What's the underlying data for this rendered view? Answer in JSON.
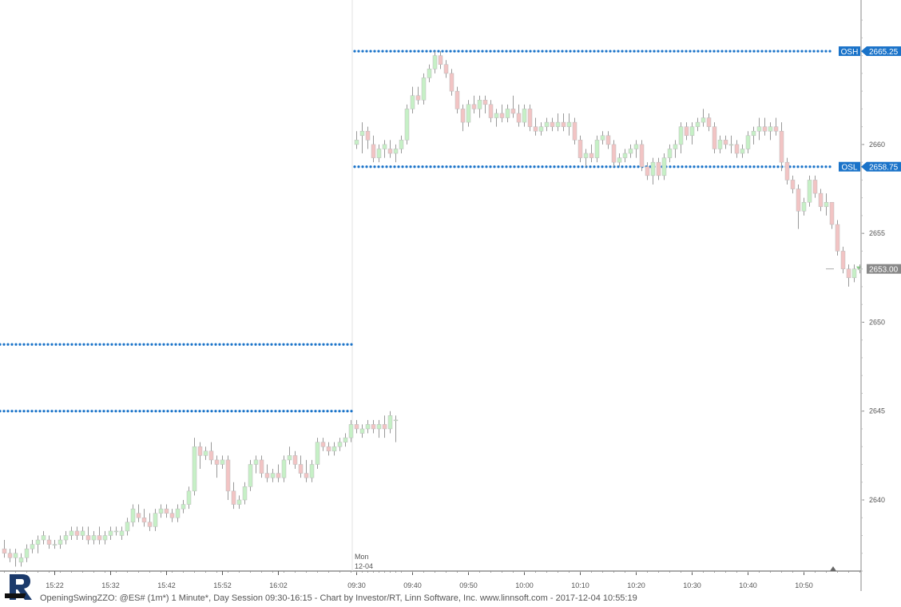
{
  "status_bar": {
    "text": "OpeningSwingZZO: @ES# (1m*) 1 Minute*, Day Session 09:30-16:15 - Chart by Investor/RT, Linn Software, Inc. www.linnsoft.com - 2017-12-04 10:55:19"
  },
  "colors": {
    "up": "#c6f0c6",
    "down": "#f2c4c4",
    "wick": "#999999",
    "level": "#1a73c9",
    "label_bg": "#1a73c9",
    "last_price_bg": "#888888"
  },
  "icons": {
    "logo": "linn-r-logo",
    "marker": "triangle-up-icon"
  },
  "chart_data": {
    "type": "candlestick",
    "title": "",
    "ylim": [
      2636,
      2667.5
    ],
    "y_ticks": [
      2640,
      2645,
      2650,
      2655,
      2660
    ],
    "x_ticks": [
      "15:22",
      "15:32",
      "15:42",
      "15:52",
      "16:02",
      "09:30",
      "09:40",
      "09:50",
      "10:00",
      "10:10",
      "10:20",
      "10:30",
      "10:40",
      "10:50"
    ],
    "session_break": {
      "label_day": "Mon",
      "label_date": "12-04"
    },
    "price_levels": [
      {
        "label": "OSH",
        "value": 2665.25,
        "value_text": "2665.25",
        "segment": "today"
      },
      {
        "label": "OSL",
        "value": 2658.75,
        "value_text": "2658.75",
        "segment": "today"
      },
      {
        "label": "",
        "value": 2648.75,
        "value_text": "",
        "segment": "prior"
      },
      {
        "label": "",
        "value": 2645.0,
        "value_text": "",
        "segment": "prior"
      }
    ],
    "last_price": {
      "value": 2653.0,
      "text": "2653.00"
    },
    "series": [
      {
        "session": "prior",
        "start_time": "15:13",
        "bars": [
          [
            2637.25,
            2637.75,
            2636.75,
            2637.0
          ],
          [
            2637.0,
            2637.25,
            2636.5,
            2636.75
          ],
          [
            2636.75,
            2637.25,
            2636.25,
            2637.0
          ],
          [
            2636.5,
            2637.0,
            2636.25,
            2636.75
          ],
          [
            2636.75,
            2637.5,
            2636.5,
            2637.25
          ],
          [
            2637.25,
            2637.75,
            2637.0,
            2637.5
          ],
          [
            2637.5,
            2638.0,
            2637.0,
            2637.75
          ],
          [
            2637.75,
            2638.25,
            2637.5,
            2638.0
          ],
          [
            2637.75,
            2638.0,
            2637.25,
            2637.5
          ],
          [
            2637.5,
            2637.75,
            2637.25,
            2637.5
          ],
          [
            2637.5,
            2638.0,
            2637.25,
            2637.75
          ],
          [
            2637.75,
            2638.25,
            2637.5,
            2638.0
          ],
          [
            2638.0,
            2638.5,
            2637.75,
            2638.25
          ],
          [
            2638.25,
            2638.5,
            2637.75,
            2638.0
          ],
          [
            2638.0,
            2638.5,
            2637.75,
            2638.25
          ],
          [
            2638.0,
            2638.5,
            2637.5,
            2637.75
          ],
          [
            2637.75,
            2638.25,
            2637.5,
            2638.0
          ],
          [
            2638.0,
            2638.5,
            2637.5,
            2637.75
          ],
          [
            2637.75,
            2638.25,
            2637.5,
            2638.0
          ],
          [
            2638.0,
            2638.5,
            2637.75,
            2638.25
          ],
          [
            2638.25,
            2638.5,
            2638.0,
            2638.25
          ],
          [
            2638.0,
            2638.5,
            2637.75,
            2638.25
          ],
          [
            2638.25,
            2639.0,
            2638.0,
            2638.75
          ],
          [
            2638.75,
            2639.75,
            2638.5,
            2639.5
          ],
          [
            2639.25,
            2639.75,
            2638.75,
            2639.0
          ],
          [
            2639.0,
            2639.5,
            2638.5,
            2638.75
          ],
          [
            2638.75,
            2639.25,
            2638.25,
            2638.5
          ],
          [
            2638.5,
            2639.5,
            2638.25,
            2639.25
          ],
          [
            2639.25,
            2639.75,
            2639.0,
            2639.5
          ],
          [
            2639.5,
            2639.75,
            2639.0,
            2639.25
          ],
          [
            2639.25,
            2639.5,
            2638.75,
            2639.0
          ],
          [
            2639.0,
            2639.75,
            2638.75,
            2639.5
          ],
          [
            2639.5,
            2640.0,
            2639.25,
            2639.75
          ],
          [
            2639.75,
            2640.75,
            2639.5,
            2640.5
          ],
          [
            2640.5,
            2643.5,
            2640.25,
            2643.0
          ],
          [
            2643.0,
            2643.25,
            2641.75,
            2642.5
          ],
          [
            2642.5,
            2643.0,
            2642.25,
            2642.75
          ],
          [
            2642.75,
            2643.25,
            2642.0,
            2642.25
          ],
          [
            2642.25,
            2642.5,
            2641.25,
            2642.0
          ],
          [
            2642.0,
            2642.5,
            2641.75,
            2642.25
          ],
          [
            2642.25,
            2642.5,
            2640.0,
            2640.5
          ],
          [
            2640.5,
            2641.0,
            2639.5,
            2639.75
          ],
          [
            2639.75,
            2640.25,
            2639.5,
            2640.0
          ],
          [
            2640.0,
            2641.0,
            2639.75,
            2640.75
          ],
          [
            2640.75,
            2642.25,
            2640.5,
            2642.0
          ],
          [
            2642.0,
            2642.5,
            2641.5,
            2642.25
          ],
          [
            2642.25,
            2642.5,
            2641.25,
            2641.5
          ],
          [
            2641.5,
            2642.0,
            2641.0,
            2641.25
          ],
          [
            2641.25,
            2641.75,
            2641.0,
            2641.5
          ],
          [
            2641.5,
            2642.0,
            2641.0,
            2641.25
          ],
          [
            2641.25,
            2642.5,
            2641.0,
            2642.25
          ],
          [
            2642.25,
            2643.0,
            2642.0,
            2642.5
          ],
          [
            2642.5,
            2642.75,
            2641.75,
            2642.0
          ],
          [
            2642.0,
            2642.5,
            2641.25,
            2641.5
          ],
          [
            2641.5,
            2642.25,
            2641.0,
            2641.25
          ],
          [
            2641.25,
            2642.25,
            2641.0,
            2642.0
          ],
          [
            2642.0,
            2643.5,
            2641.75,
            2643.25
          ],
          [
            2643.25,
            2643.5,
            2642.75,
            2643.0
          ],
          [
            2643.0,
            2643.25,
            2642.5,
            2642.75
          ],
          [
            2642.75,
            2643.25,
            2642.5,
            2643.0
          ],
          [
            2643.0,
            2643.5,
            2642.75,
            2643.25
          ],
          [
            2643.25,
            2643.75,
            2643.0,
            2643.5
          ],
          [
            2643.5,
            2644.5,
            2643.25,
            2644.25
          ],
          [
            2644.25,
            2644.5,
            2643.75,
            2644.0
          ],
          [
            2643.75,
            2644.25,
            2643.5,
            2644.0
          ],
          [
            2644.0,
            2644.5,
            2643.75,
            2644.25
          ],
          [
            2644.25,
            2644.5,
            2643.75,
            2644.0
          ],
          [
            2644.0,
            2644.5,
            2643.5,
            2644.25
          ],
          [
            2644.25,
            2644.75,
            2643.5,
            2644.0
          ],
          [
            2644.0,
            2645.0,
            2643.75,
            2644.75
          ],
          [
            2644.5,
            2644.75,
            2643.25,
            2644.5
          ]
        ]
      },
      {
        "session": "today",
        "start_time": "09:30",
        "bars": [
          [
            2660.0,
            2660.75,
            2659.75,
            2660.25
          ],
          [
            2660.5,
            2661.25,
            2659.5,
            2660.75
          ],
          [
            2660.75,
            2661.0,
            2659.75,
            2660.25
          ],
          [
            2660.0,
            2660.5,
            2659.0,
            2659.25
          ],
          [
            2659.25,
            2660.0,
            2659.0,
            2659.75
          ],
          [
            2659.75,
            2660.25,
            2659.25,
            2660.0
          ],
          [
            2659.75,
            2660.25,
            2659.25,
            2659.5
          ],
          [
            2659.5,
            2660.0,
            2659.0,
            2659.75
          ],
          [
            2659.75,
            2660.5,
            2659.5,
            2660.25
          ],
          [
            2660.25,
            2662.25,
            2660.0,
            2662.0
          ],
          [
            2662.0,
            2663.25,
            2661.75,
            2662.75
          ],
          [
            2662.75,
            2663.25,
            2662.25,
            2662.5
          ],
          [
            2662.5,
            2664.0,
            2662.25,
            2663.75
          ],
          [
            2663.75,
            2664.5,
            2663.5,
            2664.25
          ],
          [
            2664.25,
            2665.25,
            2664.0,
            2665.0
          ],
          [
            2665.0,
            2665.25,
            2664.25,
            2664.5
          ],
          [
            2664.5,
            2664.75,
            2663.75,
            2664.0
          ],
          [
            2664.0,
            2664.25,
            2662.75,
            2663.0
          ],
          [
            2663.0,
            2663.25,
            2661.75,
            2662.0
          ],
          [
            2662.0,
            2662.25,
            2660.75,
            2661.25
          ],
          [
            2661.25,
            2662.5,
            2661.0,
            2662.25
          ],
          [
            2662.25,
            2662.75,
            2661.75,
            2662.0
          ],
          [
            2662.0,
            2662.75,
            2661.5,
            2662.5
          ],
          [
            2662.5,
            2662.75,
            2661.75,
            2662.25
          ],
          [
            2662.25,
            2662.5,
            2661.25,
            2661.5
          ],
          [
            2661.5,
            2662.0,
            2661.0,
            2661.75
          ],
          [
            2661.75,
            2662.25,
            2661.25,
            2661.5
          ],
          [
            2661.5,
            2662.25,
            2661.25,
            2662.0
          ],
          [
            2662.0,
            2662.75,
            2661.5,
            2661.75
          ],
          [
            2661.75,
            2662.25,
            2661.0,
            2661.25
          ],
          [
            2661.25,
            2662.25,
            2661.0,
            2662.0
          ],
          [
            2662.0,
            2662.25,
            2660.75,
            2661.0
          ],
          [
            2661.0,
            2661.5,
            2660.5,
            2660.75
          ],
          [
            2660.75,
            2661.25,
            2660.5,
            2661.0
          ],
          [
            2661.0,
            2661.5,
            2660.75,
            2661.25
          ],
          [
            2661.25,
            2661.5,
            2660.75,
            2661.0
          ],
          [
            2661.0,
            2661.75,
            2660.75,
            2661.25
          ],
          [
            2661.25,
            2661.75,
            2660.75,
            2661.0
          ],
          [
            2661.0,
            2661.75,
            2660.5,
            2661.25
          ],
          [
            2661.25,
            2661.5,
            2660.0,
            2660.25
          ],
          [
            2660.25,
            2660.5,
            2659.0,
            2659.25
          ],
          [
            2659.25,
            2659.75,
            2658.75,
            2659.5
          ],
          [
            2659.5,
            2660.0,
            2659.0,
            2659.25
          ],
          [
            2659.25,
            2660.5,
            2659.0,
            2660.25
          ],
          [
            2660.25,
            2660.75,
            2660.0,
            2660.5
          ],
          [
            2660.5,
            2660.75,
            2659.75,
            2660.0
          ],
          [
            2660.0,
            2660.25,
            2658.75,
            2659.0
          ],
          [
            2659.0,
            2659.5,
            2658.75,
            2659.25
          ],
          [
            2659.25,
            2659.75,
            2659.0,
            2659.5
          ],
          [
            2659.5,
            2660.0,
            2659.25,
            2659.75
          ],
          [
            2659.75,
            2660.25,
            2659.25,
            2660.0
          ],
          [
            2660.0,
            2660.25,
            2658.5,
            2658.75
          ],
          [
            2658.75,
            2659.0,
            2658.0,
            2658.25
          ],
          [
            2658.25,
            2659.25,
            2657.75,
            2659.0
          ],
          [
            2659.0,
            2659.25,
            2658.0,
            2658.25
          ],
          [
            2658.25,
            2659.5,
            2658.0,
            2659.25
          ],
          [
            2659.25,
            2660.0,
            2659.0,
            2659.75
          ],
          [
            2659.75,
            2660.25,
            2659.25,
            2660.0
          ],
          [
            2660.0,
            2661.25,
            2659.5,
            2661.0
          ],
          [
            2661.0,
            2661.25,
            2660.25,
            2660.5
          ],
          [
            2660.5,
            2661.25,
            2660.0,
            2661.0
          ],
          [
            2661.0,
            2661.5,
            2660.75,
            2661.25
          ],
          [
            2661.25,
            2662.0,
            2661.0,
            2661.5
          ],
          [
            2661.5,
            2661.75,
            2660.75,
            2661.0
          ],
          [
            2661.0,
            2661.25,
            2659.5,
            2659.75
          ],
          [
            2659.75,
            2660.5,
            2659.5,
            2660.25
          ],
          [
            2660.25,
            2660.5,
            2659.75,
            2660.0
          ],
          [
            2660.0,
            2660.5,
            2659.5,
            2660.0
          ],
          [
            2660.0,
            2660.25,
            2659.25,
            2659.5
          ],
          [
            2659.5,
            2660.0,
            2659.25,
            2659.75
          ],
          [
            2659.75,
            2660.75,
            2659.5,
            2660.5
          ],
          [
            2660.5,
            2661.0,
            2660.0,
            2660.75
          ],
          [
            2660.75,
            2661.5,
            2660.25,
            2661.0
          ],
          [
            2661.0,
            2661.5,
            2660.5,
            2660.75
          ],
          [
            2660.75,
            2661.25,
            2660.25,
            2661.0
          ],
          [
            2661.0,
            2661.5,
            2660.5,
            2660.75
          ],
          [
            2660.75,
            2661.25,
            2658.5,
            2659.0
          ],
          [
            2659.0,
            2659.25,
            2657.75,
            2658.0
          ],
          [
            2658.0,
            2658.25,
            2657.25,
            2657.5
          ],
          [
            2657.5,
            2657.75,
            2655.25,
            2656.25
          ],
          [
            2656.25,
            2657.0,
            2656.0,
            2656.75
          ],
          [
            2656.75,
            2658.25,
            2656.5,
            2658.0
          ],
          [
            2658.0,
            2658.25,
            2657.0,
            2657.25
          ],
          [
            2657.25,
            2657.5,
            2656.25,
            2656.5
          ],
          [
            2656.5,
            2657.25,
            2656.0,
            2656.75
          ],
          [
            2656.75,
            2656.75,
            2655.25,
            2655.5
          ],
          [
            2655.5,
            2655.75,
            2653.75,
            2654.0
          ],
          [
            2654.0,
            2654.25,
            2652.75,
            2653.0
          ],
          [
            2653.0,
            2653.25,
            2652.0,
            2652.5
          ],
          [
            2652.5,
            2653.25,
            2652.25,
            2653.0
          ],
          [
            2653.0,
            2653.25,
            2652.75,
            2653.0
          ]
        ]
      }
    ]
  }
}
